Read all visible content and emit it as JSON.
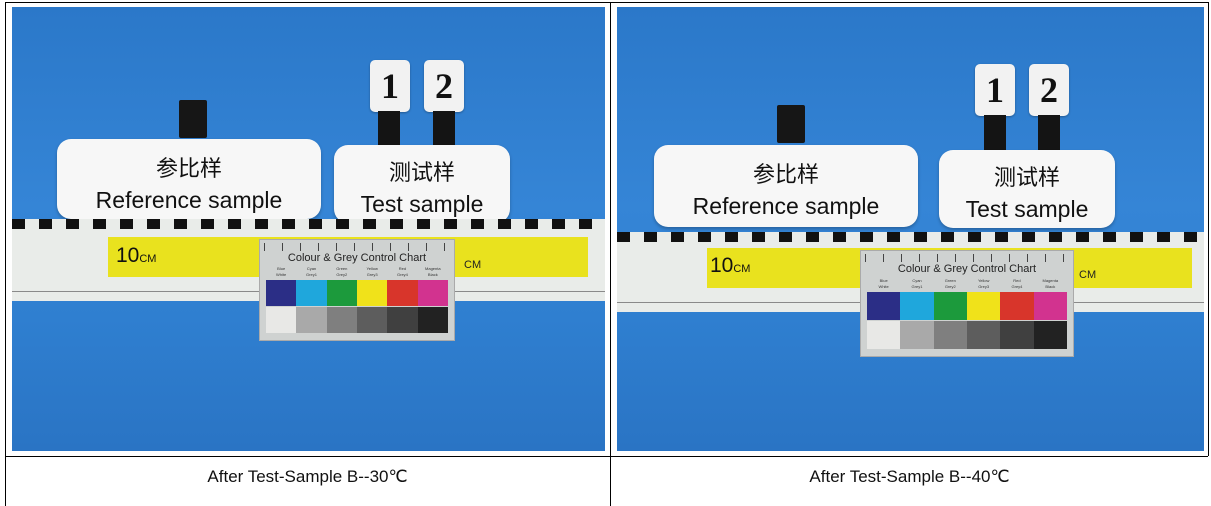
{
  "panels": [
    {
      "reference_cn": "参比样",
      "reference_en": "Reference sample",
      "test_cn": "测试样",
      "test_en": "Test sample",
      "num1": "1",
      "num2": "2",
      "ruler_value": "10",
      "ruler_unit": "CM",
      "ruler_unit_right": "CM",
      "chart_title": "Colour & Grey Control Chart",
      "color_labels": [
        "Blue",
        "Cyan",
        "Green",
        "Yellow",
        "Red",
        "Magenta"
      ],
      "grey_labels": [
        "White",
        "Grey1",
        "Grey2",
        "Grey3",
        "Grey4",
        "Black"
      ],
      "caption": "After Test-Sample B--30℃"
    },
    {
      "reference_cn": "参比样",
      "reference_en": "Reference sample",
      "test_cn": "测试样",
      "test_en": "Test sample",
      "num1": "1",
      "num2": "2",
      "ruler_value": "10",
      "ruler_unit": "CM",
      "ruler_unit_right": "CM",
      "chart_title": "Colour & Grey Control Chart",
      "color_labels": [
        "Blue",
        "Cyan",
        "Green",
        "Yellow",
        "Red",
        "Magenta"
      ],
      "grey_labels": [
        "White",
        "Grey1",
        "Grey2",
        "Grey3",
        "Grey4",
        "Black"
      ],
      "caption": "After Test-Sample B--40℃"
    }
  ],
  "colors": {
    "background_blue": "#2f7fd0",
    "swatches_color": [
      "#2b2e86",
      "#1fa7dc",
      "#1c9a3c",
      "#f0e21a",
      "#d8352b",
      "#d2338f"
    ],
    "swatches_grey": [
      "#e8e8e6",
      "#a9a9a9",
      "#7f7f7f",
      "#5d5d5d",
      "#404040",
      "#222222"
    ]
  }
}
